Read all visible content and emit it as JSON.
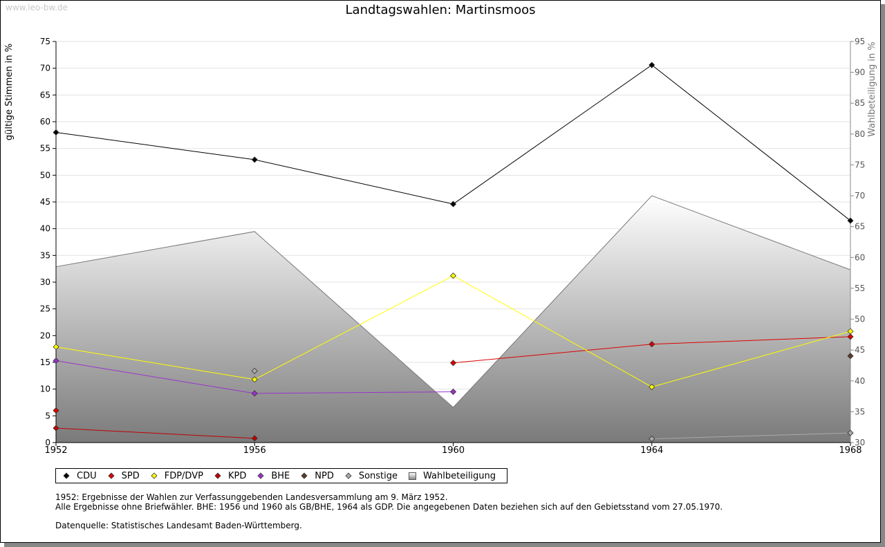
{
  "watermark": "www.leo-bw.de",
  "chart_data": {
    "type": "line",
    "title": "Landtagswahlen: Martinsmoos",
    "ylabel": "gültige Stimmen in %",
    "y2label": "Wahlbeteiligung in %",
    "x": [
      1952,
      1956,
      1960,
      1964,
      1968
    ],
    "ylim": [
      0,
      75
    ],
    "y2lim": [
      30,
      95
    ],
    "yticks": [
      0,
      5,
      10,
      15,
      20,
      25,
      30,
      35,
      40,
      45,
      50,
      55,
      60,
      65,
      70,
      75
    ],
    "y2ticks": [
      30,
      35,
      40,
      45,
      50,
      55,
      60,
      65,
      70,
      75,
      80,
      85,
      90,
      95
    ],
    "grid": true,
    "legend_position": "bottom",
    "series": [
      {
        "name": "CDU",
        "color": "#000000",
        "values": [
          58.0,
          52.9,
          44.6,
          70.6,
          41.5
        ]
      },
      {
        "name": "SPD",
        "color": "#e00000",
        "values": [
          6.0,
          null,
          14.9,
          18.4,
          19.8
        ]
      },
      {
        "name": "FDP/DVP",
        "color": "#ffff00",
        "values": [
          17.9,
          11.8,
          31.2,
          10.4,
          20.8
        ]
      },
      {
        "name": "KPD",
        "color": "#c00000",
        "values": [
          2.7,
          0.8,
          null,
          null,
          null
        ]
      },
      {
        "name": "BHE",
        "color": "#9933cc",
        "values": [
          15.3,
          9.2,
          9.5,
          null,
          null
        ]
      },
      {
        "name": "NPD",
        "color": "#5a3a28",
        "values": [
          null,
          null,
          null,
          null,
          16.2
        ]
      },
      {
        "name": "Sonstige",
        "color": "#aaaaaa",
        "values": [
          null,
          13.4,
          null,
          0.7,
          1.8
        ]
      }
    ],
    "area": {
      "name": "Wahlbeteiligung",
      "values": [
        58.5,
        64.2,
        35.7,
        70.0,
        58.0
      ]
    }
  },
  "notes": [
    "1952: Ergebnisse der Wahlen zur Verfassunggebenden Landesversammlung am 9. März 1952.",
    "Alle Ergebnisse ohne Briefwähler. BHE: 1956 und 1960 als GB/BHE, 1964 als GDP. Die angegebenen Daten beziehen sich auf den Gebietsstand vom 27.05.1970.",
    "",
    "Datenquelle: Statistisches Landesamt Baden-Württemberg."
  ]
}
